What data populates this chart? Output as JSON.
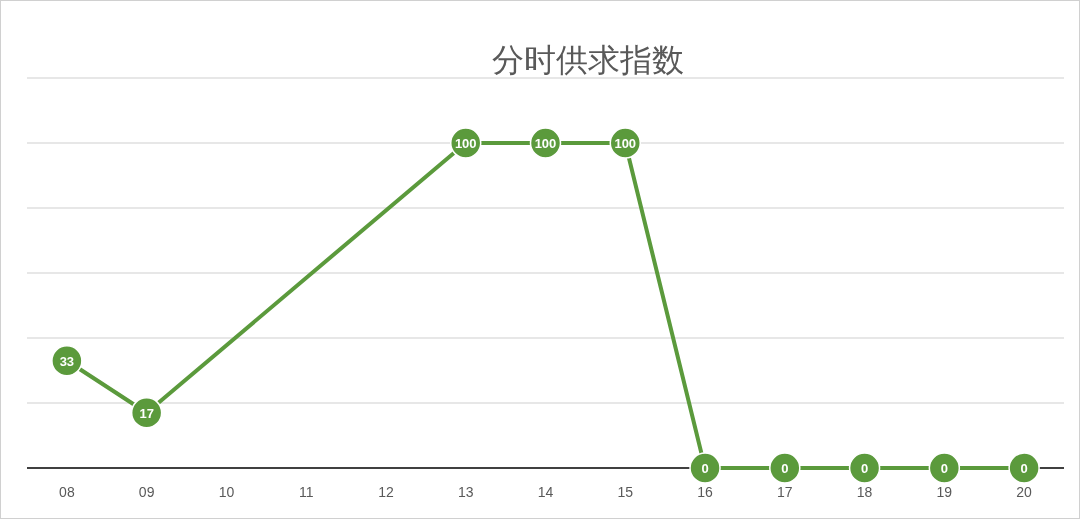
{
  "chart_data": {
    "type": "line",
    "title": "分时供求指数",
    "categories": [
      "08",
      "09",
      "10",
      "11",
      "12",
      "13",
      "14",
      "15",
      "16",
      "17",
      "18",
      "19",
      "20"
    ],
    "series": [
      {
        "color": "#5b9a3c",
        "values": [
          33,
          17,
          null,
          null,
          null,
          100,
          100,
          100,
          0,
          0,
          0,
          0,
          0
        ]
      }
    ],
    "ylim": [
      0,
      120
    ],
    "yticks": [
      {
        "value": 0,
        "label": null
      },
      {
        "value": 20,
        "label": null
      },
      {
        "value": 40,
        "label": null
      },
      {
        "value": 60,
        "label": null
      },
      {
        "value": 80,
        "label": null
      },
      {
        "value": 100,
        "label": null
      },
      {
        "value": 120,
        "label": null
      }
    ],
    "grid": "y",
    "marker": "circle",
    "data_labels": true,
    "tick_labels": "x"
  }
}
